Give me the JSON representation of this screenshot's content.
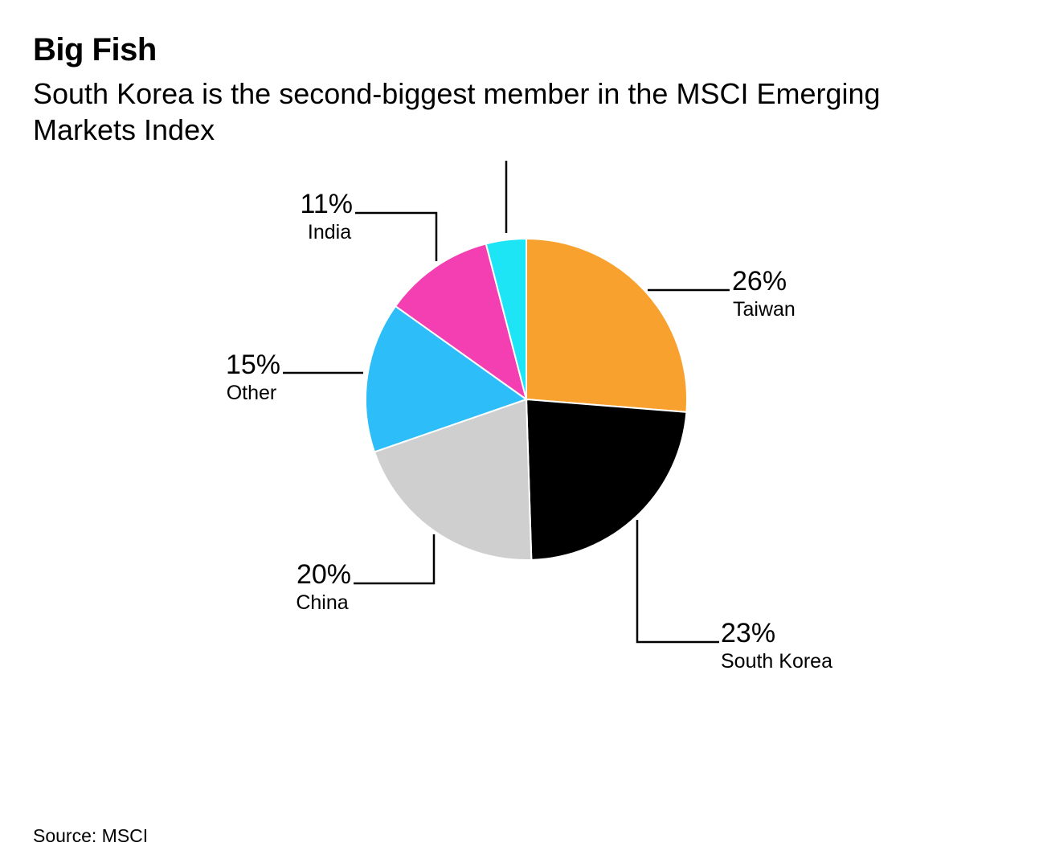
{
  "title": "Big Fish",
  "subtitle": "South Korea is the second-biggest member in the MSCI Emerging Markets Index",
  "source": "Source: MSCI",
  "chart_data": {
    "type": "pie",
    "slices": [
      {
        "label": "Taiwan",
        "value": 26,
        "value_label": "26%",
        "color": "#F9A12E"
      },
      {
        "label": "South Korea",
        "value": 23,
        "value_label": "23%",
        "color": "#000000"
      },
      {
        "label": "China",
        "value": 20,
        "value_label": "20%",
        "color": "#CFCFCF"
      },
      {
        "label": "Other",
        "value": 15,
        "value_label": "15%",
        "color": "#2DBDF9"
      },
      {
        "label": "India",
        "value": 11,
        "value_label": "11%",
        "color": "#F33FB1"
      },
      {
        "label": "",
        "value": 4,
        "value_label": "",
        "color": "#1DE5F5"
      }
    ]
  }
}
